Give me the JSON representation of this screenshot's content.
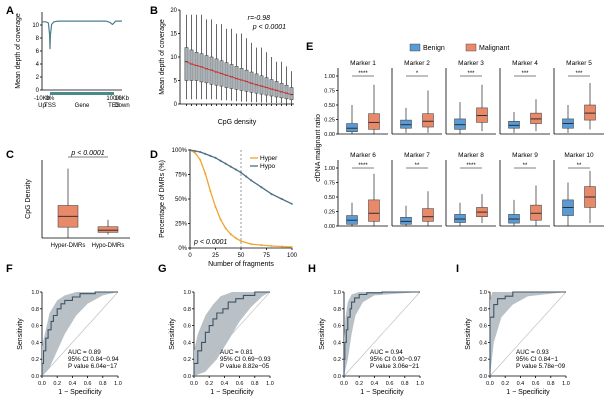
{
  "colors": {
    "benign": "#5b9bd5",
    "malignant": "#e8896a",
    "hyper": "#f0a431",
    "hypo": "#4b6e85",
    "coverage": "#4e7d8c",
    "roc": "#3e5364",
    "ci": "#b9c1c6",
    "boxA": "#a7b3ba",
    "gene": "#4a8a8a"
  },
  "chart_data": [
    {
      "panel": "A",
      "type": "line",
      "ylabel": "Mean depth of coverage",
      "ylim": [
        0,
        12
      ],
      "yticks": [
        0,
        2,
        4,
        6,
        8,
        10
      ],
      "xticklabels_top": [
        "-10Kb",
        "0%",
        "100%",
        "10Kb"
      ],
      "xticklabels_bottom": [
        "Up",
        "TSS",
        "Gene",
        "TES",
        "Down"
      ],
      "x": [
        0,
        5,
        8,
        9.5,
        10,
        10.5,
        12,
        15,
        20,
        30,
        40,
        50,
        60,
        70,
        80,
        85,
        88,
        90,
        92,
        95,
        100
      ],
      "y": [
        10.5,
        10.5,
        10.3,
        8.5,
        6.3,
        8.4,
        10.1,
        10.5,
        10.6,
        10.6,
        10.6,
        10.6,
        10.6,
        10.6,
        10.6,
        10.4,
        10.1,
        10.3,
        10.6,
        10.6,
        10.6
      ]
    },
    {
      "panel": "B",
      "type": "box",
      "xlabel": "CpG density",
      "ylabel": "Mean depth of coverage",
      "ylim": [
        0,
        20
      ],
      "yticks": [
        0,
        5,
        10,
        15,
        20
      ],
      "annotation": [
        "r=-0.98",
        "p < 0.0001"
      ],
      "boxes": [
        {
          "min": 1,
          "q1": 5,
          "median": 9,
          "q3": 12,
          "max": 19
        },
        {
          "min": 1,
          "q1": 5,
          "median": 8.5,
          "q3": 11.5,
          "max": 19
        },
        {
          "min": 1,
          "q1": 5,
          "median": 8.2,
          "q3": 11,
          "max": 19
        },
        {
          "min": 1,
          "q1": 4.7,
          "median": 7.9,
          "q3": 10.7,
          "max": 19
        },
        {
          "min": 1,
          "q1": 4.5,
          "median": 7.5,
          "q3": 10.3,
          "max": 18
        },
        {
          "min": 1,
          "q1": 4.2,
          "median": 7.2,
          "q3": 10,
          "max": 18
        },
        {
          "min": 1,
          "q1": 4,
          "median": 6.8,
          "q3": 9.6,
          "max": 17
        },
        {
          "min": 0.8,
          "q1": 3.8,
          "median": 6.5,
          "q3": 9.2,
          "max": 17
        },
        {
          "min": 0.8,
          "q1": 3.5,
          "median": 6.1,
          "q3": 8.8,
          "max": 16
        },
        {
          "min": 0.7,
          "q1": 3.3,
          "median": 5.8,
          "q3": 8.4,
          "max": 16
        },
        {
          "min": 0.6,
          "q1": 3.1,
          "median": 5.4,
          "q3": 8,
          "max": 15
        },
        {
          "min": 0.5,
          "q1": 2.9,
          "median": 5.1,
          "q3": 7.6,
          "max": 15
        },
        {
          "min": 0.5,
          "q1": 2.7,
          "median": 4.8,
          "q3": 7.2,
          "max": 14
        },
        {
          "min": 0.4,
          "q1": 2.5,
          "median": 4.4,
          "q3": 6.8,
          "max": 13
        },
        {
          "min": 0.4,
          "q1": 2.3,
          "median": 4.1,
          "q3": 6.4,
          "max": 12
        },
        {
          "min": 0.3,
          "q1": 2.1,
          "median": 3.8,
          "q3": 6,
          "max": 12
        },
        {
          "min": 0.3,
          "q1": 1.9,
          "median": 3.5,
          "q3": 5.6,
          "max": 11
        },
        {
          "min": 0.2,
          "q1": 1.7,
          "median": 3.2,
          "q3": 5.2,
          "max": 10
        },
        {
          "min": 0.2,
          "q1": 1.5,
          "median": 2.9,
          "q3": 4.8,
          "max": 9
        },
        {
          "min": 0.2,
          "q1": 1.3,
          "median": 2.6,
          "q3": 4.4,
          "max": 9
        },
        {
          "min": 0.1,
          "q1": 1.1,
          "median": 2.3,
          "q3": 4,
          "max": 8
        },
        {
          "min": 0.1,
          "q1": 0.9,
          "median": 2,
          "q3": 3.5,
          "max": 7
        }
      ]
    },
    {
      "panel": "C",
      "type": "box",
      "ylabel": "CpG Density",
      "annotation": "p < 0.0001",
      "categories": [
        "Hyper-DMRs",
        "Hypo-DMRs"
      ],
      "boxes": [
        {
          "min": 0,
          "q1": 0.025,
          "median": 0.05,
          "q3": 0.075,
          "max": 0.16
        },
        {
          "min": 0.008,
          "q1": 0.013,
          "median": 0.018,
          "q3": 0.026,
          "max": 0.042
        }
      ],
      "ylim": [
        0,
        0.18
      ]
    },
    {
      "panel": "D",
      "type": "line",
      "xlabel": "Number of fragments",
      "ylabel": "Percentage of DMRs (%)",
      "xlim": [
        0,
        100
      ],
      "ylim": [
        0,
        100
      ],
      "xticks": [
        0,
        25,
        50,
        75,
        100
      ],
      "yticks": [
        "0%",
        "25%",
        "50%",
        "75%",
        "100%"
      ],
      "annotation": "p < 0.0001",
      "vline": 50,
      "series": [
        {
          "name": "Hyper",
          "x": [
            0,
            5,
            10,
            15,
            20,
            25,
            30,
            35,
            40,
            45,
            50,
            60,
            70,
            80,
            90,
            100
          ],
          "y": [
            100,
            97,
            90,
            76,
            58,
            42,
            29,
            20,
            14,
            10,
            7,
            4,
            3,
            2,
            1.5,
            1
          ]
        },
        {
          "name": "Hypo",
          "x": [
            0,
            5,
            10,
            15,
            20,
            25,
            30,
            35,
            40,
            45,
            50,
            55,
            60,
            70,
            80,
            90,
            100
          ],
          "y": [
            100,
            99,
            98,
            96,
            94,
            92,
            89,
            86,
            83,
            80,
            77,
            73,
            69,
            62,
            55,
            50,
            45
          ]
        }
      ]
    },
    {
      "panel": "E",
      "type": "box",
      "ylabel": "cfDNA malignant ratio",
      "legend": [
        "Benign",
        "Malignant"
      ],
      "ylim": [
        0,
        1
      ],
      "yticks": [
        "0.00",
        "0.25",
        "0.50",
        "0.75",
        "1.00"
      ],
      "markers": [
        {
          "name": "Marker 1",
          "sig": "****",
          "benign": {
            "min": 0,
            "q1": 0.04,
            "median": 0.1,
            "q3": 0.18,
            "max": 0.5
          },
          "malignant": {
            "min": 0,
            "q1": 0.08,
            "median": 0.2,
            "q3": 0.35,
            "max": 0.85
          }
        },
        {
          "name": "Marker 2",
          "sig": "*",
          "benign": {
            "min": 0.02,
            "q1": 0.1,
            "median": 0.16,
            "q3": 0.24,
            "max": 0.45
          },
          "malignant": {
            "min": 0.02,
            "q1": 0.12,
            "median": 0.22,
            "q3": 0.35,
            "max": 0.75
          }
        },
        {
          "name": "Marker 3",
          "sig": "***",
          "benign": {
            "min": 0,
            "q1": 0.08,
            "median": 0.16,
            "q3": 0.26,
            "max": 0.55
          },
          "malignant": {
            "min": 0.05,
            "q1": 0.2,
            "median": 0.32,
            "q3": 0.45,
            "max": 0.85
          }
        },
        {
          "name": "Marker 4",
          "sig": "***",
          "benign": {
            "min": 0.02,
            "q1": 0.1,
            "median": 0.15,
            "q3": 0.22,
            "max": 0.38
          },
          "malignant": {
            "min": 0.05,
            "q1": 0.18,
            "median": 0.26,
            "q3": 0.36,
            "max": 0.6
          }
        },
        {
          "name": "Marker 5",
          "sig": "***",
          "benign": {
            "min": 0.02,
            "q1": 0.1,
            "median": 0.18,
            "q3": 0.26,
            "max": 0.5
          },
          "malignant": {
            "min": 0.08,
            "q1": 0.24,
            "median": 0.36,
            "q3": 0.5,
            "max": 0.88
          }
        },
        {
          "name": "Marker 6",
          "sig": "****",
          "benign": {
            "min": 0,
            "q1": 0.03,
            "median": 0.1,
            "q3": 0.18,
            "max": 0.4
          },
          "malignant": {
            "min": 0,
            "q1": 0.08,
            "median": 0.22,
            "q3": 0.45,
            "max": 0.9
          }
        },
        {
          "name": "Marker 7",
          "sig": "**",
          "benign": {
            "min": 0,
            "q1": 0.03,
            "median": 0.08,
            "q3": 0.15,
            "max": 0.35
          },
          "malignant": {
            "min": 0,
            "q1": 0.08,
            "median": 0.16,
            "q3": 0.3,
            "max": 0.6
          }
        },
        {
          "name": "Marker 8",
          "sig": "****",
          "benign": {
            "min": 0,
            "q1": 0.06,
            "median": 0.12,
            "q3": 0.2,
            "max": 0.4
          },
          "malignant": {
            "min": 0.05,
            "q1": 0.16,
            "median": 0.24,
            "q3": 0.32,
            "max": 0.55
          }
        },
        {
          "name": "Marker 9",
          "sig": "**",
          "benign": {
            "min": 0,
            "q1": 0.05,
            "median": 0.12,
            "q3": 0.2,
            "max": 0.45
          },
          "malignant": {
            "min": 0,
            "q1": 0.1,
            "median": 0.22,
            "q3": 0.36,
            "max": 0.7
          }
        },
        {
          "name": "Marker 10",
          "sig": "**",
          "benign": {
            "min": 0,
            "q1": 0.18,
            "median": 0.32,
            "q3": 0.45,
            "max": 0.75
          },
          "malignant": {
            "min": 0.05,
            "q1": 0.32,
            "median": 0.5,
            "q3": 0.68,
            "max": 0.95
          }
        }
      ]
    },
    {
      "panel": "F",
      "type": "roc",
      "xlabel": "1 − Specificity",
      "ylabel": "Sensitivity",
      "ticks": [
        "0.0",
        "0.2",
        "0.4",
        "0.6",
        "0.8",
        "1.0"
      ],
      "stats": [
        "AUC = 0.89",
        "95% CI 0.84−0.94",
        "P value 6.04e−17"
      ],
      "x": [
        0,
        0,
        0.02,
        0.02,
        0.05,
        0.05,
        0.08,
        0.08,
        0.12,
        0.12,
        0.15,
        0.15,
        0.2,
        0.2,
        0.25,
        0.25,
        0.3,
        0.3,
        0.4,
        0.4,
        0.5,
        0.5,
        0.7,
        0.7,
        1
      ],
      "y": [
        0,
        0.15,
        0.15,
        0.3,
        0.3,
        0.45,
        0.45,
        0.55,
        0.55,
        0.65,
        0.65,
        0.72,
        0.72,
        0.8,
        0.8,
        0.86,
        0.86,
        0.9,
        0.9,
        0.94,
        0.94,
        0.98,
        0.98,
        1,
        1
      ],
      "ci_upper": [
        [
          0,
          0.35
        ],
        [
          0.05,
          0.55
        ],
        [
          0.1,
          0.75
        ],
        [
          0.2,
          0.9
        ],
        [
          0.3,
          0.96
        ],
        [
          0.45,
          1
        ],
        [
          1,
          1
        ]
      ],
      "ci_lower": [
        [
          0,
          0
        ],
        [
          0.1,
          0.1
        ],
        [
          0.2,
          0.3
        ],
        [
          0.3,
          0.5
        ],
        [
          0.45,
          0.72
        ],
        [
          0.6,
          0.86
        ],
        [
          0.8,
          0.96
        ],
        [
          1,
          1
        ]
      ]
    },
    {
      "panel": "G",
      "type": "roc",
      "xlabel": "1 − Specificity",
      "ylabel": "Sensitivity",
      "ticks": [
        "0.0",
        "0.2",
        "0.4",
        "0.6",
        "0.8",
        "1.0"
      ],
      "stats": [
        "AUC = 0.81",
        "95% CI 0.69−0.93",
        "P value 8.82e−05"
      ],
      "x": [
        0,
        0,
        0.05,
        0.05,
        0.1,
        0.1,
        0.15,
        0.15,
        0.2,
        0.2,
        0.25,
        0.25,
        0.3,
        0.3,
        0.38,
        0.38,
        0.45,
        0.45,
        0.55,
        0.55,
        0.65,
        0.65,
        0.8,
        0.8,
        1
      ],
      "y": [
        0,
        0.15,
        0.15,
        0.3,
        0.3,
        0.4,
        0.4,
        0.52,
        0.52,
        0.6,
        0.6,
        0.68,
        0.68,
        0.75,
        0.75,
        0.8,
        0.8,
        0.88,
        0.88,
        0.92,
        0.92,
        0.96,
        0.96,
        1,
        1
      ],
      "ci_upper": [
        [
          0,
          0.3
        ],
        [
          0.05,
          0.5
        ],
        [
          0.15,
          0.72
        ],
        [
          0.25,
          0.85
        ],
        [
          0.35,
          0.95
        ],
        [
          0.5,
          1
        ],
        [
          1,
          1
        ]
      ],
      "ci_lower": [
        [
          0,
          0
        ],
        [
          0.15,
          0.05
        ],
        [
          0.3,
          0.2
        ],
        [
          0.45,
          0.42
        ],
        [
          0.6,
          0.65
        ],
        [
          0.75,
          0.82
        ],
        [
          0.9,
          0.95
        ],
        [
          1,
          1
        ]
      ]
    },
    {
      "panel": "H",
      "type": "roc",
      "xlabel": "1 − Specificity",
      "ylabel": "Sensitivity",
      "ticks": [
        "0.0",
        "0.2",
        "0.4",
        "0.6",
        "0.8",
        "1.0"
      ],
      "stats": [
        "AUC = 0.94",
        "95% CI 0.90−0.97",
        "P value 3.06e−21"
      ],
      "x": [
        0,
        0,
        0.01,
        0.01,
        0.03,
        0.03,
        0.05,
        0.05,
        0.08,
        0.08,
        0.1,
        0.1,
        0.14,
        0.14,
        0.2,
        0.2,
        0.3,
        0.3,
        0.5,
        0.5,
        1
      ],
      "y": [
        0,
        0.2,
        0.2,
        0.4,
        0.4,
        0.55,
        0.55,
        0.7,
        0.7,
        0.8,
        0.8,
        0.88,
        0.88,
        0.93,
        0.93,
        0.97,
        0.97,
        0.99,
        0.99,
        1,
        1
      ],
      "ci_upper": [
        [
          0,
          0.45
        ],
        [
          0.02,
          0.7
        ],
        [
          0.05,
          0.88
        ],
        [
          0.1,
          0.97
        ],
        [
          0.2,
          1
        ],
        [
          1,
          1
        ]
      ],
      "ci_lower": [
        [
          0,
          0
        ],
        [
          0.05,
          0.2
        ],
        [
          0.1,
          0.5
        ],
        [
          0.15,
          0.72
        ],
        [
          0.25,
          0.88
        ],
        [
          0.4,
          0.96
        ],
        [
          1,
          1
        ]
      ]
    },
    {
      "panel": "I",
      "type": "roc",
      "xlabel": "1 − Specificity",
      "ylabel": "Sensitivity",
      "ticks": [
        "0.0",
        "0.2",
        "0.4",
        "0.6",
        "0.8",
        "1.0"
      ],
      "stats": [
        "AUC = 0.93",
        "95% CI 0.84−1",
        "P value 5.78e−09"
      ],
      "x": [
        0,
        0,
        0.05,
        0.05,
        0.1,
        0.1,
        0.2,
        0.2,
        0.3,
        0.3,
        1
      ],
      "y": [
        0,
        0.7,
        0.7,
        0.85,
        0.85,
        0.92,
        0.92,
        0.95,
        0.95,
        1,
        1
      ],
      "ci_upper": [
        [
          0,
          0.9
        ],
        [
          0.03,
          1
        ],
        [
          1,
          1
        ]
      ],
      "ci_lower": [
        [
          0,
          0
        ],
        [
          0.05,
          0.4
        ],
        [
          0.15,
          0.7
        ],
        [
          0.3,
          0.85
        ],
        [
          0.5,
          0.95
        ],
        [
          1,
          1
        ]
      ]
    }
  ],
  "panel_letters": [
    "A",
    "B",
    "C",
    "D",
    "E",
    "F",
    "G",
    "H",
    "I"
  ]
}
